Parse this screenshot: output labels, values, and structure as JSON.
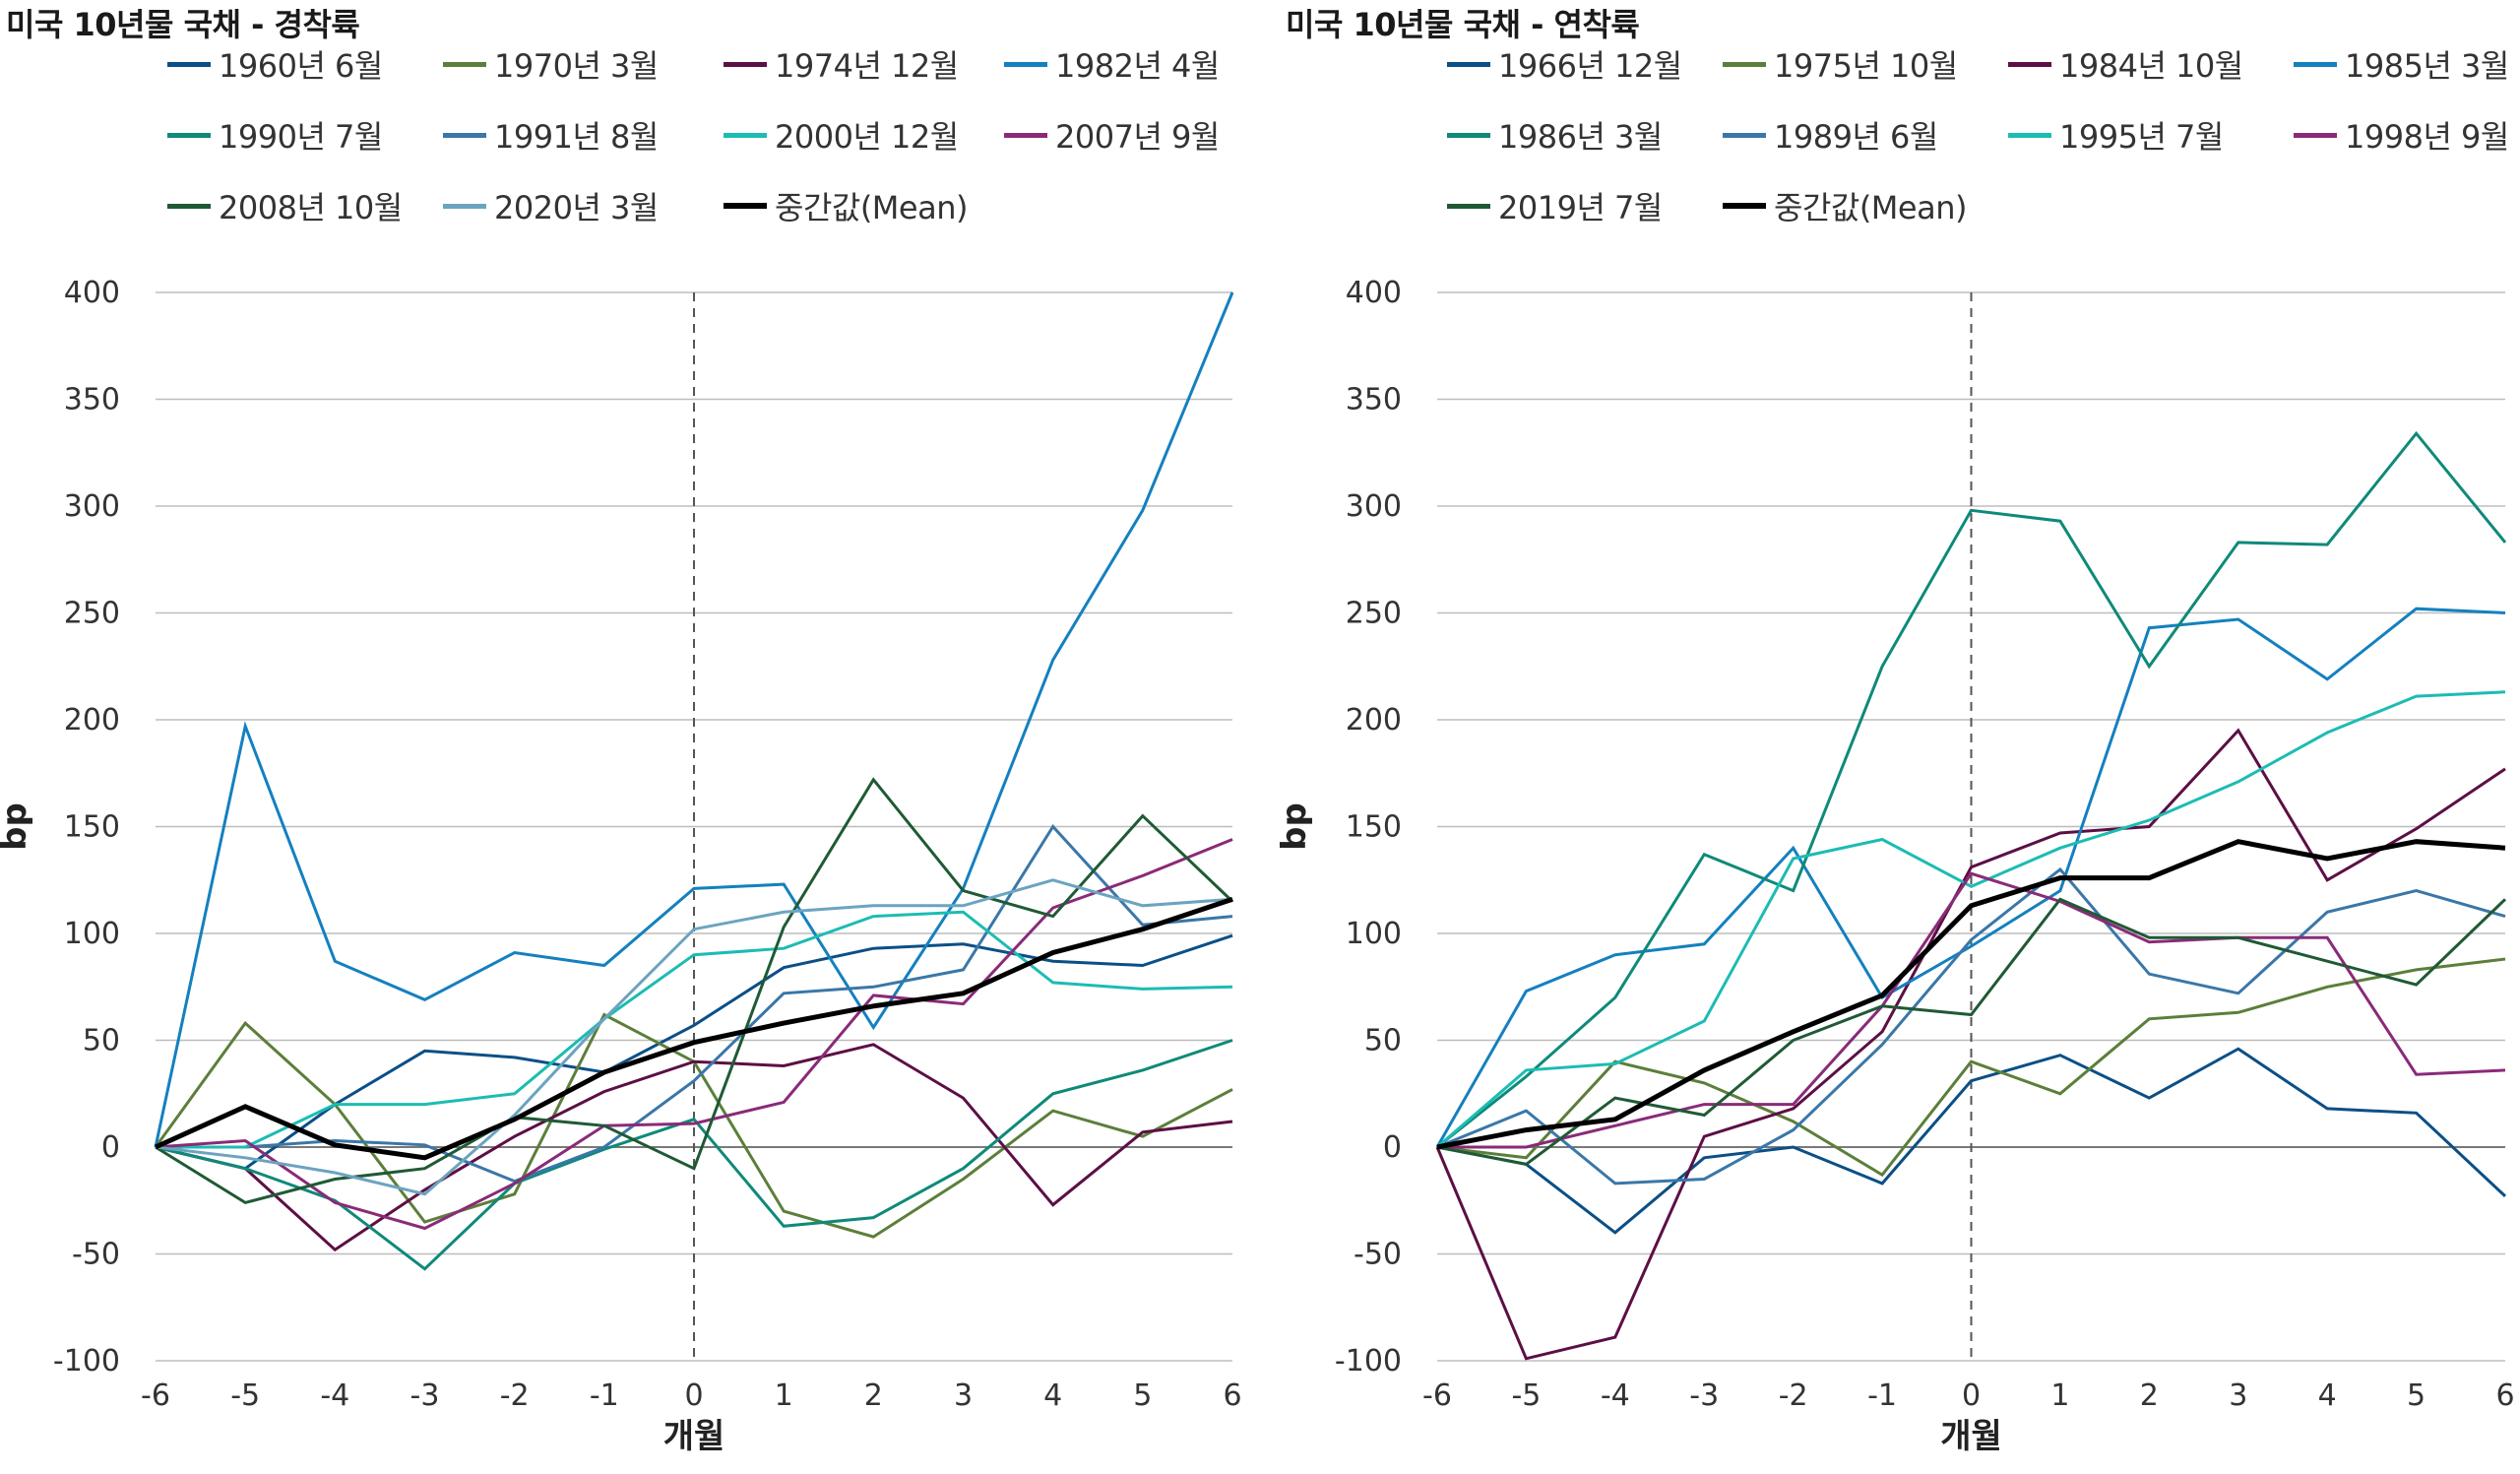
{
  "chart_data": [
    {
      "type": "line",
      "title": "미국 10년물 국채 - 경착륙",
      "xlabel": "개월",
      "ylabel": "bp",
      "x": [
        -6,
        -5,
        -4,
        -3,
        -2,
        -1,
        0,
        1,
        2,
        3,
        4,
        5,
        6
      ],
      "xticks": [
        "-6",
        "-5",
        "-4",
        "-3",
        "-2",
        "-1",
        "0",
        "1",
        "2",
        "3",
        "4",
        "5",
        "6"
      ],
      "yticks": [
        "400",
        "350",
        "300",
        "250",
        "200",
        "150",
        "100",
        "50",
        "0",
        "-50",
        "-100"
      ],
      "ylim": [
        -100,
        400
      ],
      "vline_x": 0,
      "series": [
        {
          "name": "1960년 6월",
          "color": "#0b4f86",
          "width": 3,
          "values": [
            0,
            -10,
            20,
            45,
            42,
            35,
            57,
            84,
            93,
            95,
            87,
            85,
            99
          ]
        },
        {
          "name": "1970년 3월",
          "color": "#5b7f3a",
          "width": 3,
          "values": [
            0,
            58,
            20,
            -35,
            -22,
            62,
            40,
            -30,
            -42,
            -15,
            17,
            5,
            27
          ]
        },
        {
          "name": "1974년 12월",
          "color": "#5c0f45",
          "width": 3,
          "values": [
            0,
            -10,
            -48,
            -20,
            5,
            26,
            40,
            38,
            48,
            23,
            -27,
            7,
            12
          ]
        },
        {
          "name": "1982년 4월",
          "color": "#1480bf",
          "width": 3,
          "values": [
            0,
            197,
            87,
            69,
            91,
            85,
            121,
            123,
            56,
            121,
            228,
            298,
            400
          ]
        },
        {
          "name": "1990년 7월",
          "color": "#0e8a79",
          "width": 3,
          "values": [
            0,
            -10,
            -25,
            -57,
            -17,
            -1,
            13,
            -37,
            -33,
            -10,
            25,
            36,
            50
          ]
        },
        {
          "name": "1991년 8월",
          "color": "#3a77a8",
          "width": 3,
          "values": [
            0,
            0,
            3,
            1,
            -16,
            0,
            31,
            72,
            75,
            83,
            150,
            104,
            108
          ]
        },
        {
          "name": "2000년 12월",
          "color": "#1cbcb3",
          "width": 3,
          "values": [
            0,
            0,
            20,
            20,
            25,
            60,
            90,
            93,
            108,
            110,
            77,
            74,
            75
          ]
        },
        {
          "name": "2007년 9월",
          "color": "#8a2a78",
          "width": 3,
          "values": [
            0,
            3,
            -26,
            -38,
            -17,
            10,
            11,
            21,
            71,
            67,
            112,
            127,
            144
          ]
        },
        {
          "name": "2008년 10월",
          "color": "#1f5a35",
          "width": 3,
          "values": [
            0,
            -26,
            -15,
            -10,
            14,
            10,
            -10,
            103,
            172,
            120,
            108,
            155,
            115
          ]
        },
        {
          "name": "2020년 3월",
          "color": "#6ba4c0",
          "width": 3,
          "values": [
            0,
            -5,
            -12,
            -22,
            15,
            60,
            102,
            110,
            113,
            113,
            125,
            113,
            116
          ]
        },
        {
          "name": "중간값(Mean)",
          "color": "#000000",
          "width": 5,
          "values": [
            0,
            19,
            1,
            -5,
            13,
            35,
            49,
            58,
            66,
            72,
            91,
            102,
            116
          ]
        }
      ]
    },
    {
      "type": "line",
      "title": "미국 10년물 국채 - 연착륙",
      "xlabel": "개월",
      "ylabel": "bp",
      "x": [
        -6,
        -5,
        -4,
        -3,
        -2,
        -1,
        0,
        1,
        2,
        3,
        4,
        5,
        6
      ],
      "xticks": [
        "-6",
        "-5",
        "-4",
        "-3",
        "-2",
        "-1",
        "0",
        "1",
        "2",
        "3",
        "4",
        "5",
        "6"
      ],
      "yticks": [
        "400",
        "350",
        "300",
        "250",
        "200",
        "150",
        "100",
        "50",
        "0",
        "-50",
        "-100"
      ],
      "ylim": [
        -100,
        400
      ],
      "vline_x": 0,
      "series": [
        {
          "name": "1966년 12월",
          "color": "#0b4f86",
          "width": 3,
          "values": [
            0,
            -8,
            -40,
            -5,
            0,
            -17,
            31,
            43,
            23,
            46,
            18,
            16,
            -23
          ]
        },
        {
          "name": "1975년 10월",
          "color": "#5b7f3a",
          "width": 3,
          "values": [
            0,
            -5,
            40,
            30,
            12,
            -13,
            40,
            25,
            60,
            63,
            75,
            83,
            88
          ]
        },
        {
          "name": "1984년 10월",
          "color": "#5c0f45",
          "width": 3,
          "values": [
            0,
            -99,
            -89,
            5,
            18,
            54,
            131,
            147,
            150,
            195,
            125,
            149,
            177
          ]
        },
        {
          "name": "1985년 3월",
          "color": "#1480bf",
          "width": 3,
          "values": [
            0,
            73,
            90,
            95,
            140,
            70,
            94,
            120,
            243,
            247,
            219,
            252,
            250
          ]
        },
        {
          "name": "1986년 3월",
          "color": "#0e8a79",
          "width": 3,
          "values": [
            0,
            33,
            70,
            137,
            120,
            225,
            298,
            293,
            225,
            283,
            282,
            334,
            283
          ]
        },
        {
          "name": "1989년 6월",
          "color": "#3a77a8",
          "width": 3,
          "values": [
            0,
            17,
            -17,
            -15,
            8,
            48,
            97,
            130,
            81,
            72,
            110,
            120,
            108
          ]
        },
        {
          "name": "1995년 7월",
          "color": "#1cbcb3",
          "width": 3,
          "values": [
            0,
            36,
            39,
            59,
            135,
            144,
            122,
            140,
            153,
            171,
            194,
            211,
            213
          ]
        },
        {
          "name": "1998년 9월",
          "color": "#8a2a78",
          "width": 3,
          "values": [
            0,
            0,
            10,
            20,
            20,
            66,
            128,
            115,
            96,
            98,
            98,
            34,
            36
          ]
        },
        {
          "name": "2019년 7월",
          "color": "#1f5a35",
          "width": 3,
          "values": [
            0,
            -8,
            23,
            15,
            50,
            66,
            62,
            116,
            98,
            98,
            87,
            76,
            116
          ]
        },
        {
          "name": "중간값(Mean)",
          "color": "#000000",
          "width": 5,
          "values": [
            0,
            8,
            13,
            36,
            54,
            71,
            113,
            126,
            126,
            143,
            135,
            143,
            140
          ]
        }
      ]
    }
  ]
}
